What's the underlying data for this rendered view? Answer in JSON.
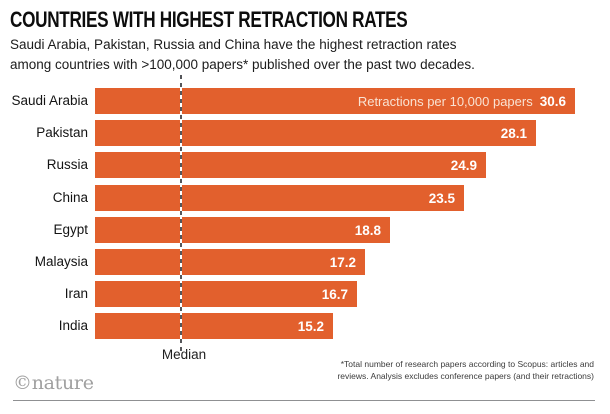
{
  "chart_data": {
    "type": "bar",
    "orientation": "horizontal",
    "title": "COUNTRIES WITH HIGHEST RETRACTION RATES",
    "subtitle_lines": [
      "Saudi Arabia, Pakistan, Russia and China have the highest retraction rates",
      "among countries with >100,000 papers* published over the past two decades."
    ],
    "categories": [
      "Saudi Arabia",
      "Pakistan",
      "Russia",
      "China",
      "Egypt",
      "Malaysia",
      "Iran",
      "India"
    ],
    "values": [
      30.6,
      28.1,
      24.9,
      23.5,
      18.8,
      17.2,
      16.7,
      15.2
    ],
    "bar_label_prefix": "Retractions per 10,000 papers",
    "xlim": [
      0,
      30.6
    ],
    "median": {
      "label": "Median",
      "value": 5.4
    },
    "grid": false,
    "legend": "none",
    "footnote_lines": [
      "*Total number of research papers according to Scopus: articles and",
      "reviews. Analysis excludes conference papers (and their retractions)"
    ],
    "colors": {
      "bar": "#E2602D",
      "value_label": "#FFFFFF",
      "prefix_label": "#F9E2D2",
      "median_dash_dark": "#55565a",
      "median_dash_light": "#FFFFFF"
    }
  },
  "branding": {
    "logo": "©nature"
  }
}
